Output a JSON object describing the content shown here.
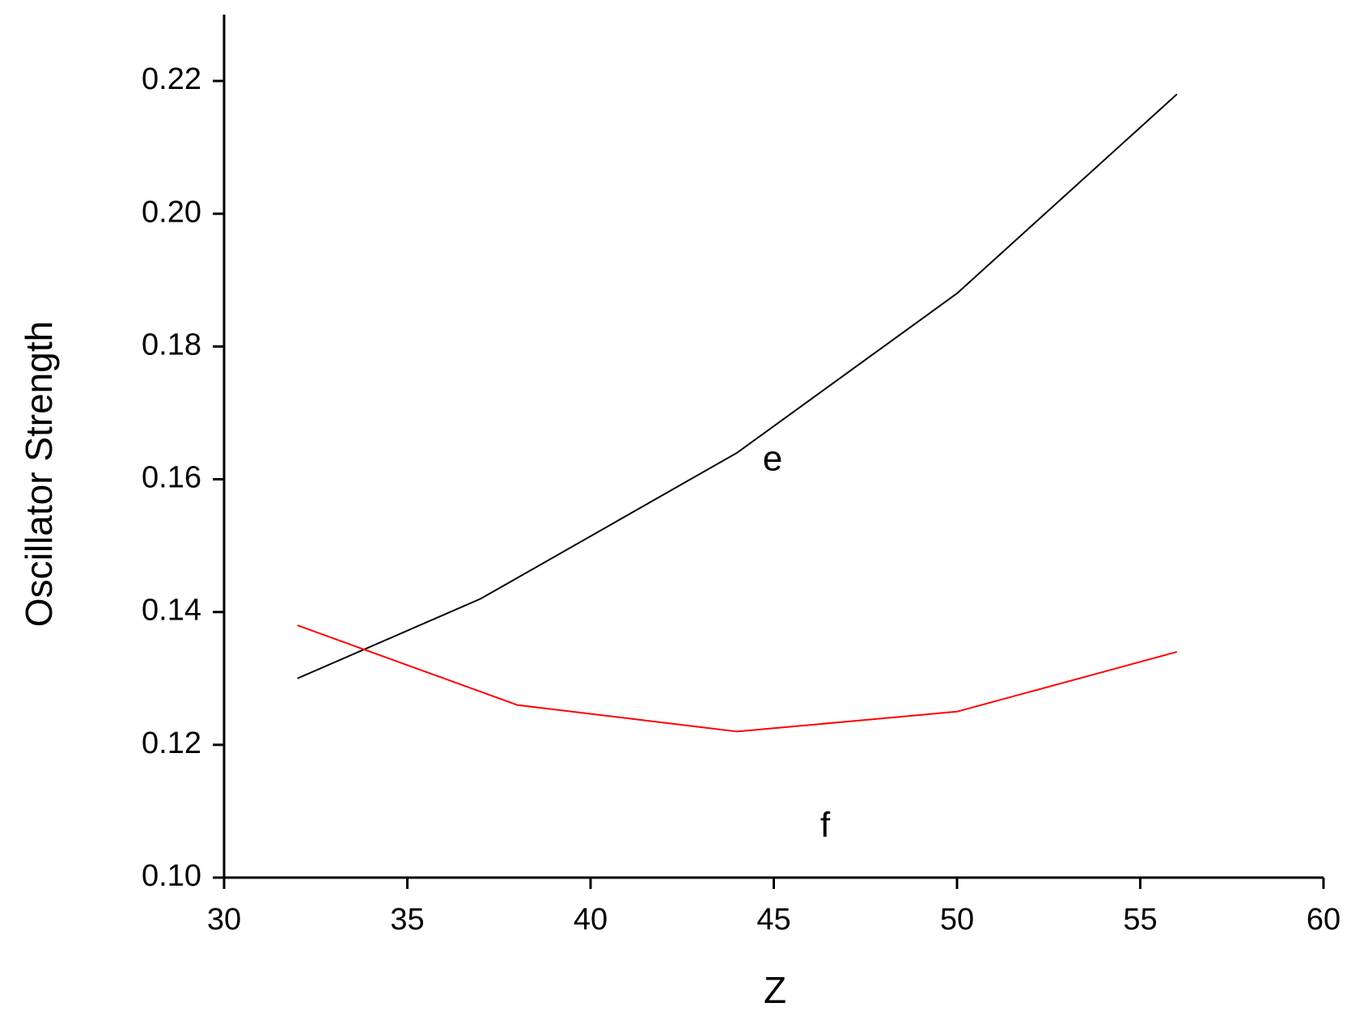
{
  "chart_data": {
    "type": "line",
    "x_label": "Z",
    "y_label": "Oscillator Strength",
    "series": [
      {
        "name": "e",
        "color": "#000000",
        "x": [
          32,
          37,
          44,
          50,
          56
        ],
        "values": [
          0.13,
          0.142,
          0.164,
          0.188,
          0.218
        ]
      },
      {
        "name": "f",
        "color": "#ff0000",
        "x": [
          32,
          38,
          44,
          50,
          56
        ],
        "values": [
          0.138,
          0.126,
          0.122,
          0.125,
          0.134
        ]
      }
    ],
    "xlim": [
      30,
      60
    ],
    "xticks": [
      30,
      35,
      40,
      45,
      50,
      55,
      60
    ],
    "ylim": [
      0.1,
      0.23
    ],
    "yticks": [
      {
        "value": 0.1,
        "label": "0.10"
      },
      0.12,
      0.14,
      0.16,
      0.18,
      {
        "value": 0.2,
        "label": "0.20"
      },
      0.22
    ],
    "grid": false
  }
}
